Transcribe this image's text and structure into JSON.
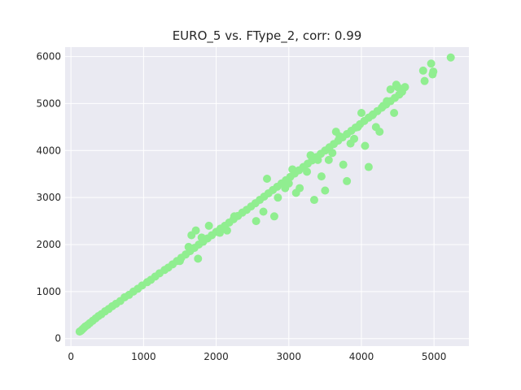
{
  "chart_data": {
    "type": "scatter",
    "title": "EURO_5 vs. FType_2, corr: 0.99",
    "xlabel": "",
    "ylabel": "",
    "xlim": [
      -80,
      5480
    ],
    "ylim": [
      -160,
      6200
    ],
    "xticks": [
      0,
      1000,
      2000,
      3000,
      4000,
      5000
    ],
    "yticks": [
      0,
      1000,
      2000,
      3000,
      4000,
      5000,
      6000
    ],
    "grid": true,
    "point_color": "#90ee90",
    "background_color": "#eaeaf2",
    "grid_color": "#ffffff",
    "series": [
      {
        "x": [
          120,
          140,
          160,
          180,
          200,
          230,
          260,
          300,
          340,
          380,
          420,
          470,
          520,
          570,
          620,
          680,
          740,
          800,
          860,
          920,
          980,
          1050,
          1100,
          1160,
          1220,
          1290,
          1340,
          1400,
          1460,
          1520,
          1580,
          1640,
          1700,
          1760,
          1820,
          1880,
          1940,
          2000,
          2060,
          2120,
          2180,
          2240,
          2300,
          2360,
          2420,
          2480,
          2540,
          2600,
          2660,
          2720,
          2780,
          2840,
          2900,
          2960,
          3020,
          3080,
          3140,
          3200,
          3260,
          3320,
          3380,
          3440,
          3500,
          3560,
          3620,
          3680,
          3740,
          3800,
          3860,
          3920,
          3980,
          4040,
          4100,
          4160,
          4220,
          4280,
          4340,
          4400,
          4460,
          4520,
          1660,
          1720,
          1800,
          1900,
          2050,
          2150,
          2550,
          2700,
          2850,
          3000,
          3150,
          3300,
          3400,
          3450,
          3600,
          3700,
          3750,
          3850,
          3950,
          4050,
          4150,
          4250,
          4350,
          4450,
          1500,
          1620,
          1750,
          2250,
          2650,
          2950,
          3050,
          3250,
          3550,
          3650,
          3900,
          4000,
          4200,
          4300,
          4400,
          4500,
          2800,
          3100,
          3350,
          3500,
          3800,
          4100,
          4480,
          4560,
          4600,
          4850,
          4870,
          4960,
          4980,
          4990,
          5230
        ],
        "y": [
          150,
          170,
          200,
          230,
          260,
          290,
          330,
          380,
          430,
          480,
          520,
          580,
          630,
          690,
          740,
          800,
          880,
          930,
          1000,
          1060,
          1130,
          1200,
          1250,
          1320,
          1390,
          1460,
          1510,
          1580,
          1650,
          1720,
          1790,
          1860,
          1930,
          2000,
          2060,
          2130,
          2200,
          2270,
          2340,
          2400,
          2470,
          2540,
          2610,
          2680,
          2740,
          2810,
          2880,
          2950,
          3020,
          3090,
          3160,
          3230,
          3300,
          3370,
          3440,
          3510,
          3580,
          3650,
          3720,
          3790,
          3860,
          3930,
          4000,
          4070,
          4140,
          4210,
          4280,
          4350,
          4420,
          4490,
          4560,
          4630,
          4700,
          4770,
          4840,
          4910,
          4980,
          5050,
          5120,
          5190,
          2200,
          2300,
          2150,
          2400,
          2250,
          2300,
          2500,
          3400,
          3000,
          3300,
          3200,
          3900,
          3800,
          3450,
          3950,
          4300,
          3700,
          4150,
          4500,
          4100,
          4750,
          4400,
          5050,
          4800,
          1650,
          1950,
          1700,
          2600,
          2700,
          3200,
          3600,
          3550,
          3800,
          4400,
          4250,
          4800,
          4500,
          4950,
          5300,
          5350,
          2600,
          3100,
          2950,
          3150,
          3350,
          3650,
          5400,
          5250,
          5350,
          5700,
          5480,
          5850,
          5620,
          5680,
          5980
        ]
      }
    ]
  }
}
